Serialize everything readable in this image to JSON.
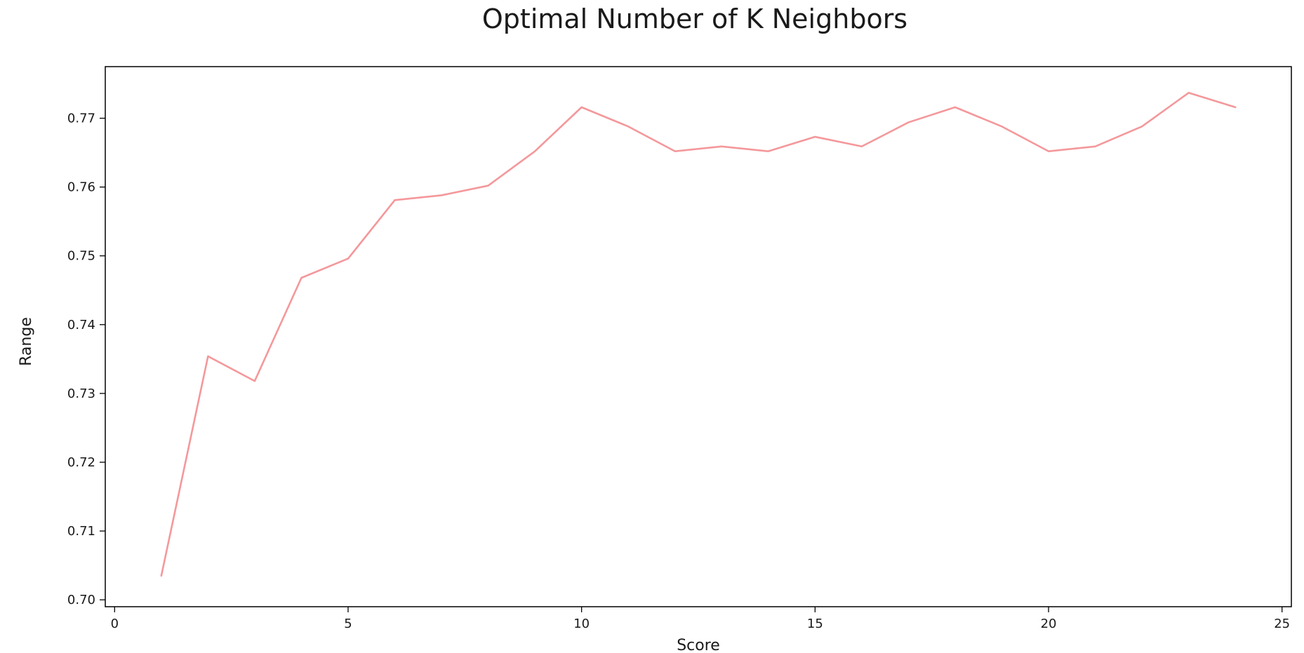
{
  "chart_data": {
    "type": "line",
    "title": "Optimal Number of K Neighbors",
    "xlabel": "Score",
    "ylabel": "Range",
    "xlim": [
      -0.2,
      25.2
    ],
    "ylim": [
      0.699,
      0.7775
    ],
    "xticks": [
      0,
      5,
      10,
      15,
      20,
      25
    ],
    "xtick_labels": [
      "0",
      "5",
      "10",
      "15",
      "20",
      "25"
    ],
    "yticks": [
      0.7,
      0.71,
      0.72,
      0.73,
      0.74,
      0.75,
      0.76,
      0.77
    ],
    "ytick_labels": [
      "0.70",
      "0.71",
      "0.72",
      "0.73",
      "0.74",
      "0.75",
      "0.76",
      "0.77"
    ],
    "grid": false,
    "series": [
      {
        "color": "#f4989b",
        "x": [
          1,
          2,
          3,
          4,
          5,
          6,
          7,
          8,
          9,
          10,
          11,
          12,
          13,
          14,
          15,
          16,
          17,
          18,
          19,
          20,
          21,
          22,
          23,
          24
        ],
        "y": [
          0.7035,
          0.7354,
          0.7318,
          0.7468,
          0.7496,
          0.7581,
          0.7588,
          0.7602,
          0.7652,
          0.7716,
          0.7688,
          0.7652,
          0.7659,
          0.7652,
          0.7673,
          0.7659,
          0.7694,
          0.7716,
          0.7688,
          0.7652,
          0.7659,
          0.7688,
          0.7737,
          0.7716
        ]
      }
    ]
  }
}
